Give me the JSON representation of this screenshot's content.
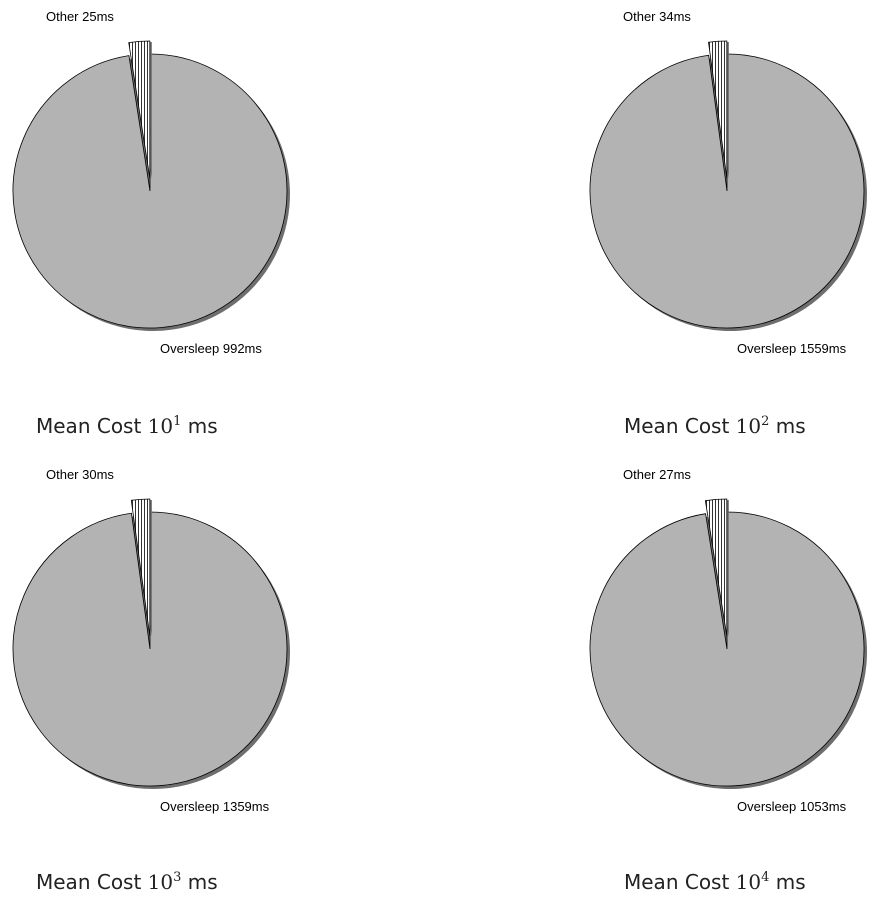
{
  "chart_data": [
    {
      "type": "pie",
      "caption": {
        "prefix": "Mean Cost",
        "base": "10",
        "exponent": "1",
        "unit": "ms"
      },
      "slices": [
        {
          "label": "Other",
          "value": 25,
          "text": "Other 25ms",
          "color": "#ffffff",
          "pattern": "vertical-lines"
        },
        {
          "label": "Oversleep",
          "value": 992,
          "text": "Oversleep 992ms",
          "color": "#b3b3b3",
          "pattern": "solid"
        }
      ]
    },
    {
      "type": "pie",
      "caption": {
        "prefix": "Mean Cost",
        "base": "10",
        "exponent": "2",
        "unit": "ms"
      },
      "slices": [
        {
          "label": "Other",
          "value": 34,
          "text": "Other 34ms",
          "color": "#ffffff",
          "pattern": "vertical-lines"
        },
        {
          "label": "Oversleep",
          "value": 1559,
          "text": "Oversleep 1559ms",
          "color": "#b3b3b3",
          "pattern": "solid"
        }
      ]
    },
    {
      "type": "pie",
      "caption": {
        "prefix": "Mean Cost",
        "base": "10",
        "exponent": "3",
        "unit": "ms"
      },
      "slices": [
        {
          "label": "Other",
          "value": 30,
          "text": "Other 30ms",
          "color": "#ffffff",
          "pattern": "vertical-lines"
        },
        {
          "label": "Oversleep",
          "value": 1359,
          "text": "Oversleep 1359ms",
          "color": "#b3b3b3",
          "pattern": "solid"
        }
      ]
    },
    {
      "type": "pie",
      "caption": {
        "prefix": "Mean Cost",
        "base": "10",
        "exponent": "4",
        "unit": "ms"
      },
      "slices": [
        {
          "label": "Other",
          "value": 27,
          "text": "Other 27ms",
          "color": "#ffffff",
          "pattern": "vertical-lines"
        },
        {
          "label": "Oversleep",
          "value": 1053,
          "text": "Oversleep 1053ms",
          "color": "#b3b3b3",
          "pattern": "solid"
        }
      ]
    }
  ],
  "colors": {
    "oversleep": "#b3b3b3",
    "shadow": "#6e6e6e",
    "outline": "#000000"
  }
}
